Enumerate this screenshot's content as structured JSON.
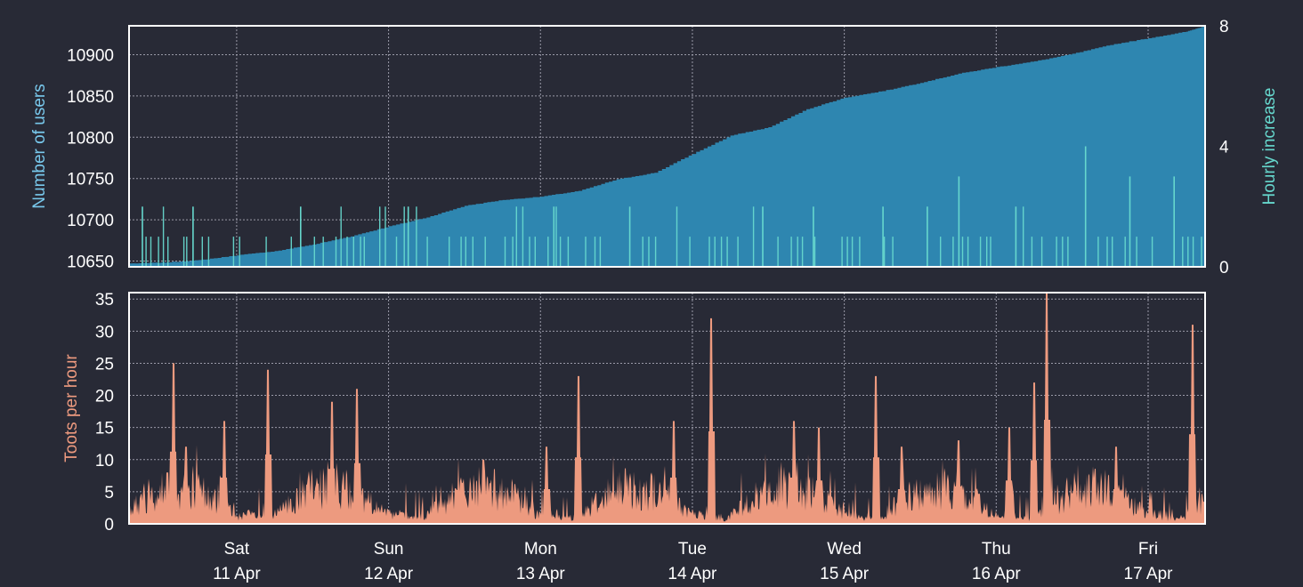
{
  "colors": {
    "background": "#282a36",
    "frame": "#ffffff",
    "grid": "#9a9aa8",
    "tick_text": "#ffffff",
    "users_area": "#2e86b0",
    "users_label": "#78c8ec",
    "hourly_bars": "#66d7cd",
    "hourly_label": "#66d7cd",
    "toots_area": "#ed9a7f",
    "toots_label": "#ed9a7f"
  },
  "time_axis": {
    "start": "2020-04-10T07:00",
    "end": "2020-04-17T09:00",
    "ticks": [
      {
        "at": "2020-04-11T00:00",
        "day": "Sat",
        "date": "11 Apr"
      },
      {
        "at": "2020-04-12T00:00",
        "day": "Sun",
        "date": "12 Apr"
      },
      {
        "at": "2020-04-13T00:00",
        "day": "Mon",
        "date": "13 Apr"
      },
      {
        "at": "2020-04-14T00:00",
        "day": "Tue",
        "date": "14 Apr"
      },
      {
        "at": "2020-04-15T00:00",
        "day": "Wed",
        "date": "15 Apr"
      },
      {
        "at": "2020-04-16T00:00",
        "day": "Thu",
        "date": "16 Apr"
      },
      {
        "at": "2020-04-17T00:00",
        "day": "Fri",
        "date": "17 Apr"
      }
    ]
  },
  "chart_data": [
    {
      "type": "area",
      "ylabel": "Number of users",
      "ylim": [
        10643,
        10935
      ],
      "yticks": [
        10650,
        10700,
        10750,
        10800,
        10850,
        10900
      ],
      "grid": true,
      "series": [
        {
          "x": [
            "2020-04-10T07:00",
            "2020-04-10T12:00",
            "2020-04-10T18:00",
            "2020-04-11T00:00",
            "2020-04-11T06:00",
            "2020-04-11T12:00",
            "2020-04-11T18:00",
            "2020-04-12T00:00",
            "2020-04-12T06:00",
            "2020-04-12T12:00",
            "2020-04-12T18:00",
            "2020-04-13T00:00",
            "2020-04-13T06:00",
            "2020-04-13T12:00",
            "2020-04-13T18:00",
            "2020-04-14T00:00",
            "2020-04-14T06:00",
            "2020-04-14T12:00",
            "2020-04-14T18:00",
            "2020-04-15T00:00",
            "2020-04-15T06:00",
            "2020-04-15T12:00",
            "2020-04-15T18:00",
            "2020-04-16T00:00",
            "2020-04-16T06:00",
            "2020-04-16T12:00",
            "2020-04-16T18:00",
            "2020-04-17T00:00",
            "2020-04-17T06:00",
            "2020-04-17T09:00"
          ],
          "values": [
            10647,
            10648,
            10651,
            10657,
            10662,
            10670,
            10680,
            10692,
            10703,
            10717,
            10724,
            10728,
            10735,
            10749,
            10757,
            10780,
            10802,
            10812,
            10834,
            10848,
            10856,
            10866,
            10877,
            10885,
            10892,
            10901,
            10912,
            10920,
            10928,
            10935
          ]
        }
      ]
    },
    {
      "type": "bar",
      "ylabel": "Hourly increase",
      "ylim": [
        0,
        8
      ],
      "yticks": [
        0,
        4,
        8
      ],
      "series": [
        {
          "x": [
            "2020-04-10T09:00",
            "2020-04-10T17:00",
            "2020-04-11T10:00",
            "2020-04-12T03:00",
            "2020-04-13T02:00",
            "2020-04-13T14:00",
            "2020-04-14T11:00",
            "2020-04-14T19:00",
            "2020-04-15T06:00",
            "2020-04-15T13:00",
            "2020-04-15T18:00",
            "2020-04-16T03:00",
            "2020-04-16T14:00",
            "2020-04-16T21:00",
            "2020-04-17T04:00"
          ],
          "values": [
            2,
            2,
            2,
            2,
            2,
            2,
            2,
            2,
            2,
            2,
            3,
            2,
            4,
            3,
            3
          ]
        }
      ]
    },
    {
      "type": "area",
      "ylabel": "Toots per hour",
      "ylim": [
        0,
        36
      ],
      "yticks": [
        0,
        5,
        10,
        15,
        20,
        25,
        30,
        35
      ],
      "grid": true,
      "series": [
        {
          "x": [
            "2020-04-10T09:00",
            "2020-04-10T13:00",
            "2020-04-10T14:00",
            "2020-04-10T16:00",
            "2020-04-10T22:00",
            "2020-04-11T05:00",
            "2020-04-11T15:00",
            "2020-04-11T19:00",
            "2020-04-12T15:00",
            "2020-04-13T01:00",
            "2020-04-13T06:00",
            "2020-04-13T21:00",
            "2020-04-14T03:00",
            "2020-04-14T16:00",
            "2020-04-14T20:00",
            "2020-04-15T05:00",
            "2020-04-15T09:00",
            "2020-04-15T18:00",
            "2020-04-16T02:00",
            "2020-04-16T06:00",
            "2020-04-16T08:00",
            "2020-04-16T19:00",
            "2020-04-17T07:00"
          ],
          "values": [
            3,
            8,
            25,
            12,
            16,
            24,
            19,
            21,
            10,
            12,
            23,
            16,
            32,
            16,
            15,
            23,
            12,
            13,
            15,
            22,
            36,
            12,
            31
          ]
        }
      ]
    }
  ]
}
